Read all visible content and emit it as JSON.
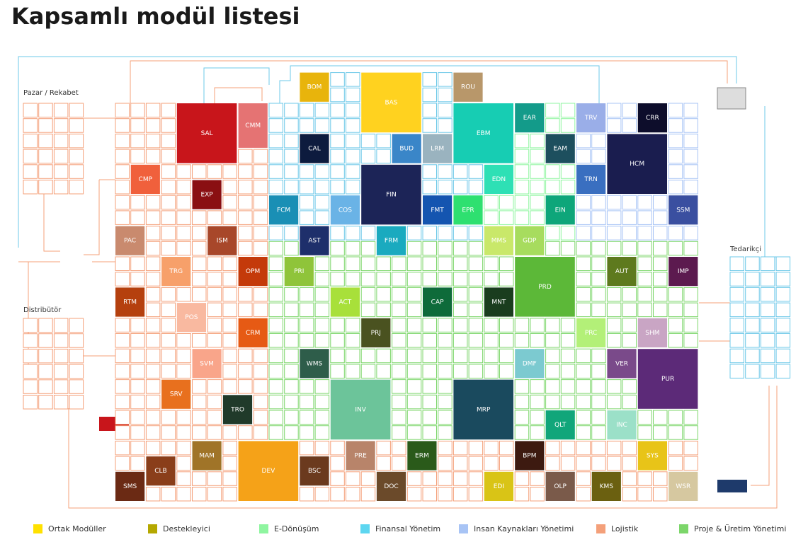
{
  "header": {
    "title": "Kapsamlı modül listesi"
  },
  "side_labels": [
    "Pazar / Rekabet",
    "Distribütör",
    "Tedarikçi"
  ],
  "modules": [
    {
      "label": "SAL",
      "color": "#c8151b"
    },
    {
      "label": "CMM",
      "color": "#e57373"
    },
    {
      "label": "BOM",
      "color": "#e8b40c"
    },
    {
      "label": "BAS",
      "color": "#ffd21f"
    },
    {
      "label": "ROU",
      "color": "#b8976a"
    },
    {
      "label": "EBM",
      "color": "#17cdb3"
    },
    {
      "label": "EAR",
      "color": "#139b8a"
    },
    {
      "label": "TRV",
      "color": "#9aaee8"
    },
    {
      "label": "CRR",
      "color": "#0d0d2b"
    },
    {
      "label": "CAL",
      "color": "#0d1b3e"
    },
    {
      "label": "BUD",
      "color": "#3a86c8"
    },
    {
      "label": "LRM",
      "color": "#9ab3bf"
    },
    {
      "label": "EAM",
      "color": "#1d4f5e"
    },
    {
      "label": "HCM",
      "color": "#1a1d4f"
    },
    {
      "label": "CMP",
      "color": "#f0603c"
    },
    {
      "label": "FIN",
      "color": "#1c2457"
    },
    {
      "label": "EDN",
      "color": "#2ee0b5"
    },
    {
      "label": "TRN",
      "color": "#3a6fc0"
    },
    {
      "label": "EXP",
      "color": "#8a0f12"
    },
    {
      "label": "FCM",
      "color": "#1a8fb5"
    },
    {
      "label": "COS",
      "color": "#6ab3e6"
    },
    {
      "label": "FMT",
      "color": "#1455b0"
    },
    {
      "label": "EPR",
      "color": "#2ee070"
    },
    {
      "label": "EIN",
      "color": "#0ea67a"
    },
    {
      "label": "SSM",
      "color": "#3a4fa0"
    },
    {
      "label": "PAC",
      "color": "#c98a6e"
    },
    {
      "label": "ISM",
      "color": "#a8472a"
    },
    {
      "label": "AST",
      "color": "#1e2f6b"
    },
    {
      "label": "FRM",
      "color": "#1aaabf"
    },
    {
      "label": "MMS",
      "color": "#c9e86a"
    },
    {
      "label": "GDP",
      "color": "#a7dc5e"
    },
    {
      "label": "TRG",
      "color": "#f7a06a"
    },
    {
      "label": "OPM",
      "color": "#c43a0a"
    },
    {
      "label": "PRI",
      "color": "#8fc43a"
    },
    {
      "label": "PRD",
      "color": "#5cb838"
    },
    {
      "label": "AUT",
      "color": "#5e7a1e"
    },
    {
      "label": "IMP",
      "color": "#5c1a4f"
    },
    {
      "label": "RTM",
      "color": "#b5400e"
    },
    {
      "label": "ACT",
      "color": "#a8e03a"
    },
    {
      "label": "CAP",
      "color": "#0e6b3a"
    },
    {
      "label": "MNT",
      "color": "#1a3d1e"
    },
    {
      "label": "POS",
      "color": "#f9b9a0"
    },
    {
      "label": "CRM",
      "color": "#e65a14"
    },
    {
      "label": "PRJ",
      "color": "#4a5220"
    },
    {
      "label": "PRC",
      "color": "#b3f078"
    },
    {
      "label": "SHM",
      "color": "#c9a5c4"
    },
    {
      "label": "SVM",
      "color": "#f9a58a"
    },
    {
      "label": "WMS",
      "color": "#2e5d4a"
    },
    {
      "label": "DMF",
      "color": "#7ccad0"
    },
    {
      "label": "VER",
      "color": "#7a4a8a"
    },
    {
      "label": "PUR",
      "color": "#5c2a78"
    },
    {
      "label": "SRV",
      "color": "#e8701e"
    },
    {
      "label": "INV",
      "color": "#6cc49a"
    },
    {
      "label": "MRP",
      "color": "#1a4a5e"
    },
    {
      "label": "TRO",
      "color": "#203a2a"
    },
    {
      "label": "QLT",
      "color": "#11a67a"
    },
    {
      "label": "INC",
      "color": "#9be0c8"
    },
    {
      "label": "MAM",
      "color": "#a07428"
    },
    {
      "label": "DEV",
      "color": "#f5a218"
    },
    {
      "label": "PRE",
      "color": "#b8846a"
    },
    {
      "label": "ERM",
      "color": "#2a5a1a"
    },
    {
      "label": "BPM",
      "color": "#3d1a10"
    },
    {
      "label": "SYS",
      "color": "#e8c418"
    },
    {
      "label": "CLB",
      "color": "#8a3e1a"
    },
    {
      "label": "BSC",
      "color": "#6b3a1e"
    },
    {
      "label": "SMS",
      "color": "#6b2a14"
    },
    {
      "label": "DOC",
      "color": "#6b4a2a"
    },
    {
      "label": "EDI",
      "color": "#d9c416"
    },
    {
      "label": "OLP",
      "color": "#7a5a4a"
    },
    {
      "label": "KMS",
      "color": "#6b6010"
    },
    {
      "label": "WSR",
      "color": "#d6c8a0"
    }
  ],
  "legend": [
    {
      "label": "Ortak Modüller",
      "color": "#ffe100"
    },
    {
      "label": "Destekleyici",
      "color": "#b5a800"
    },
    {
      "label": "E-Dönüşüm",
      "color": "#8ff5a0"
    },
    {
      "label": "Finansal Yönetim",
      "color": "#5dd6f0"
    },
    {
      "label": "Insan Kaynakları Yönetimi",
      "color": "#a8c4f5"
    },
    {
      "label": "Lojistik",
      "color": "#f4a07a"
    },
    {
      "label": "Proje & Üretim Yönetimi",
      "color": "#7cd66a"
    }
  ]
}
